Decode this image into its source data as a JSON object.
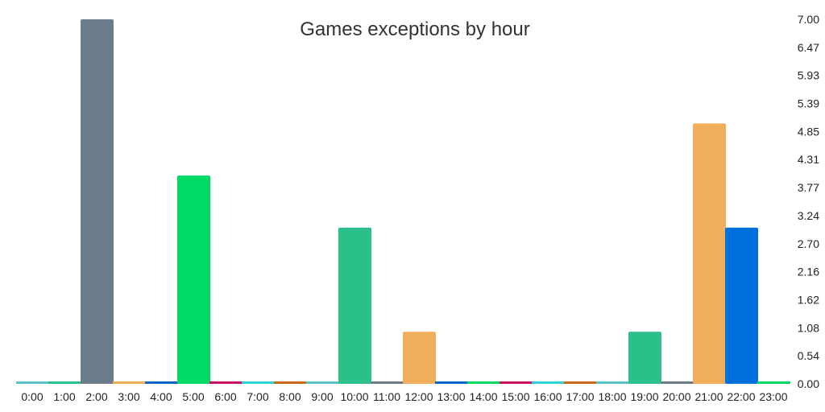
{
  "chart_data": {
    "type": "bar",
    "title": "Games exceptions by hour",
    "xlabel": "",
    "ylabel": "",
    "ylim": [
      0,
      7
    ],
    "y_axis_position": "right",
    "y_ticks": [
      "0.00",
      "0.54",
      "1.08",
      "1.62",
      "2.16",
      "2.70",
      "3.24",
      "3.77",
      "4.31",
      "4.85",
      "5.39",
      "5.93",
      "6.47",
      "7.00"
    ],
    "categories": [
      "0:00",
      "1:00",
      "2:00",
      "3:00",
      "4:00",
      "5:00",
      "6:00",
      "7:00",
      "8:00",
      "9:00",
      "10:00",
      "11:00",
      "12:00",
      "13:00",
      "14:00",
      "15:00",
      "16:00",
      "17:00",
      "18:00",
      "19:00",
      "20:00",
      "21:00",
      "22:00",
      "23:00"
    ],
    "values": [
      0,
      0,
      7,
      0,
      0,
      4,
      0,
      0,
      0,
      0,
      3,
      0,
      1,
      0,
      0,
      0,
      0,
      0,
      0,
      1,
      0,
      5,
      3,
      0
    ],
    "colors": [
      "#5cc3c8",
      "#2bbf8a",
      "#6b7d8a",
      "#f0ae5a",
      "#0a66c2",
      "#00d964",
      "#cc1163",
      "#2cd3d6",
      "#cc6a15",
      "#5cc3c8",
      "#2bbf8a",
      "#6b7d8a",
      "#f0ae5a",
      "#0a66c2",
      "#00d964",
      "#cc1163",
      "#2cd3d6",
      "#cc6a15",
      "#5cc3c8",
      "#2bbf8a",
      "#6b7d8a",
      "#f0ae5a",
      "#0070dc",
      "#00d964"
    ],
    "grid": false,
    "legend": "none"
  }
}
